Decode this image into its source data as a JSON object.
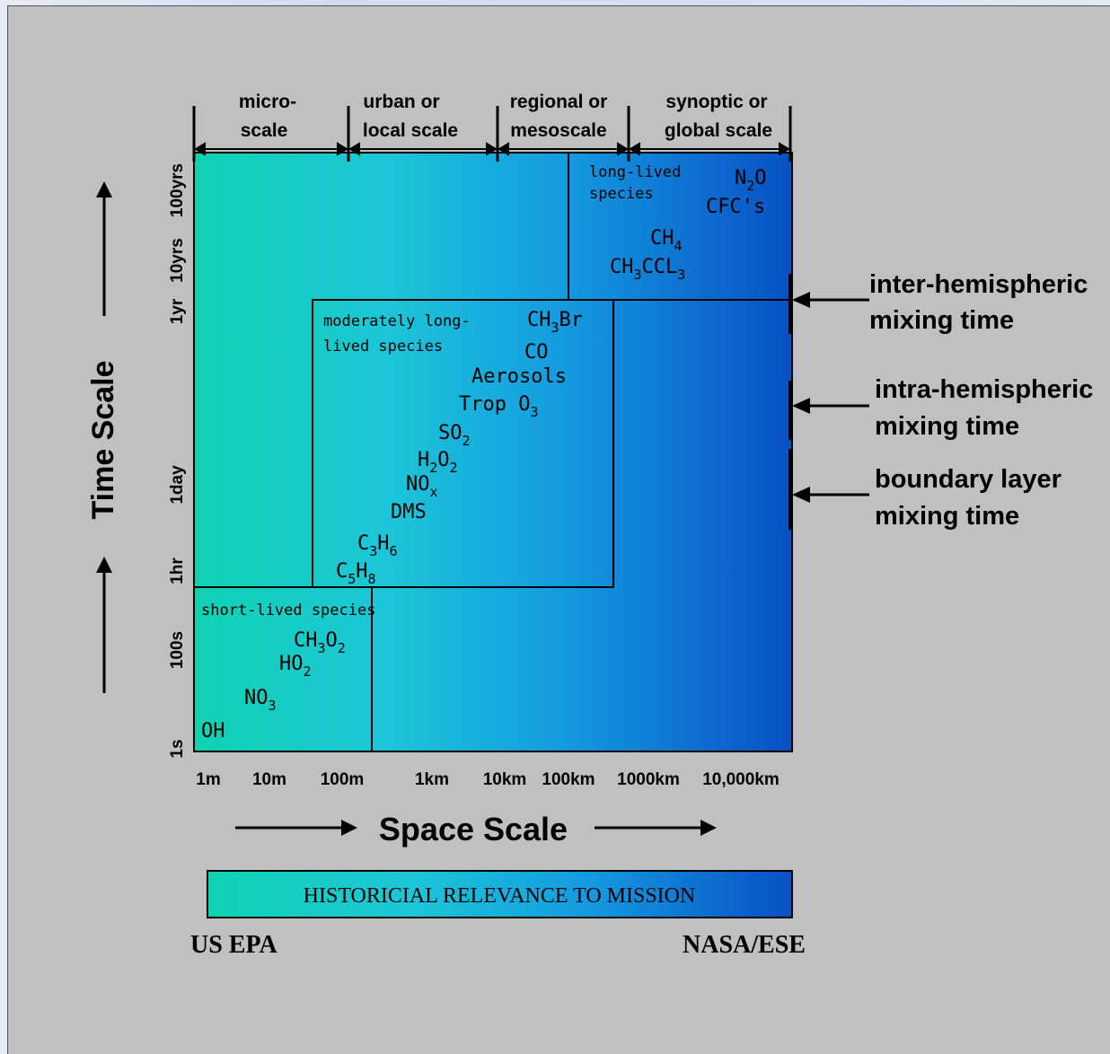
{
  "space_scales": {
    "micro": [
      "micro-",
      "scale"
    ],
    "urban": [
      "urban or",
      "local scale"
    ],
    "regional": [
      "regional or",
      "mesoscale"
    ],
    "synoptic": [
      "synoptic or",
      "global scale"
    ]
  },
  "axis": {
    "y_title": "Time Scale",
    "x_title": "Space Scale",
    "y_ticks": [
      "1s",
      "100s",
      "1hr",
      "1day",
      "1yr",
      "10yrs",
      "100yrs"
    ],
    "x_ticks": [
      "1m",
      "10m",
      "100m",
      "1km",
      "10km",
      "100km",
      "1000km",
      "10,000km"
    ]
  },
  "regions": {
    "long_lived": {
      "label": [
        "long-lived",
        "species"
      ],
      "species": [
        {
          "base": "N",
          "sub": "2",
          "tail": "O"
        },
        {
          "base": "CFC's",
          "sub": "",
          "tail": ""
        },
        {
          "base": "CH",
          "sub": "4",
          "tail": ""
        },
        {
          "base": "CH",
          "sub": "3",
          "tail": "CCL",
          "sub2": "3"
        }
      ]
    },
    "moderately_long_lived": {
      "label": [
        "moderately long-",
        "lived species"
      ],
      "species": [
        {
          "base": "CH",
          "sub": "3",
          "tail": "Br"
        },
        {
          "base": "CO",
          "sub": "",
          "tail": ""
        },
        {
          "base": "Aerosols",
          "sub": "",
          "tail": ""
        },
        {
          "base": "Trop O",
          "sub": "3",
          "tail": ""
        },
        {
          "base": "SO",
          "sub": "2",
          "tail": ""
        },
        {
          "base": "H",
          "sub": "2",
          "tail": "O",
          "sub2": "2"
        },
        {
          "base": "NO",
          "sub": "x",
          "tail": ""
        },
        {
          "base": "DMS",
          "sub": "",
          "tail": ""
        },
        {
          "base": "C",
          "sub": "3",
          "tail": "H",
          "sub2": "6"
        },
        {
          "base": "C",
          "sub": "5",
          "tail": "H",
          "sub2": "8"
        }
      ]
    },
    "short_lived": {
      "label": "short-lived species",
      "species": [
        {
          "base": "CH",
          "sub": "3",
          "tail": "O",
          "sub2": "2"
        },
        {
          "base": "HO",
          "sub": "2",
          "tail": ""
        },
        {
          "base": "NO",
          "sub": "3",
          "tail": ""
        },
        {
          "base": "OH",
          "sub": "",
          "tail": ""
        }
      ]
    }
  },
  "mixing_times": [
    [
      "inter-hemispheric",
      "mixing time"
    ],
    [
      "intra-hemispheric",
      "mixing time"
    ],
    [
      "boundary layer",
      "mixing time"
    ]
  ],
  "relevance_bar": {
    "label": "HISTORICIAL RELEVANCE TO MISSION",
    "left": "US EPA",
    "right": "NASA/ESE"
  },
  "colors": {
    "gradient_start": "#16d0b8",
    "gradient_mid": "#14a8e0",
    "gradient_end": "#0a50c8",
    "panel": "#c0c0c0"
  }
}
